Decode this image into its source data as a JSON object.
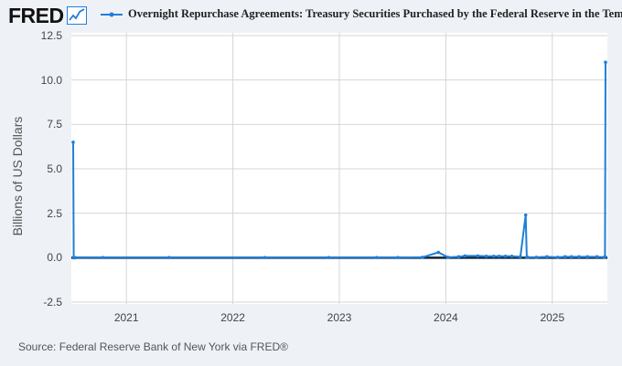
{
  "header": {
    "logo_text": "FRED",
    "legend_label": "Overnight Repurchase Agreements: Treasury Securities Purchased by the Federal Reserve in the Temporary Open Market Operations"
  },
  "footer": {
    "source": "Source: Federal Reserve Bank of New York via FRED®"
  },
  "colors": {
    "series": "#1f7fd8",
    "background": "#eef1f6",
    "plot": "#ffffff",
    "grid": "#d6d6d6"
  },
  "chart_data": {
    "type": "line",
    "title": "Overnight Repurchase Agreements: Treasury Securities Purchased by the Federal Reserve in the Temporary Open Market Operations",
    "xlabel": "",
    "ylabel": "Billions of US Dollars",
    "ylim": [
      -2.5,
      12.5
    ],
    "xlim": [
      2020.5,
      2025.5
    ],
    "yticks": [
      {
        "value": -2.5,
        "label": "-2.5"
      },
      {
        "value": 0,
        "label": "0.0"
      },
      {
        "value": 2.5,
        "label": "2.5"
      },
      {
        "value": 5,
        "label": "5.0"
      },
      {
        "value": 7.5,
        "label": "7.5"
      },
      {
        "value": 10,
        "label": "10.0"
      },
      {
        "value": 12.5,
        "label": "12.5"
      }
    ],
    "xticks": [
      {
        "value": 2021,
        "label": "2021"
      },
      {
        "value": 2022,
        "label": "2022"
      },
      {
        "value": 2023,
        "label": "2023"
      },
      {
        "value": 2024,
        "label": "2024"
      },
      {
        "value": 2025,
        "label": "2025"
      }
    ],
    "grid": true,
    "series": [
      {
        "name": "Overnight Repurchase Agreements: Treasury Securities Purchased by the Federal Reserve in the Temporary Open Market Operations",
        "x": [
          2020.5,
          2020.505,
          2020.52,
          2020.78,
          2021.4,
          2022.3,
          2022.9,
          2023.35,
          2023.55,
          2023.78,
          2023.93,
          2024.02,
          2024.12,
          2024.18,
          2024.3,
          2024.38,
          2024.45,
          2024.5,
          2024.56,
          2024.62,
          2024.7,
          2024.75,
          2024.76,
          2024.77,
          2024.85,
          2024.95,
          2025.05,
          2025.12,
          2025.18,
          2025.25,
          2025.33,
          2025.42,
          2025.49,
          2025.495,
          2025.5
        ],
        "y": [
          6.5,
          0,
          0,
          0.01,
          0.01,
          0.01,
          0.01,
          0.01,
          0.01,
          0.02,
          0.3,
          0.02,
          0.05,
          0.1,
          0.1,
          0.08,
          0.08,
          0.08,
          0.08,
          0.08,
          0.05,
          2.4,
          0.02,
          0.02,
          0.02,
          0.05,
          0.02,
          0.05,
          0.05,
          0.05,
          0.05,
          0.05,
          0.02,
          0.05,
          11.0
        ]
      }
    ]
  }
}
